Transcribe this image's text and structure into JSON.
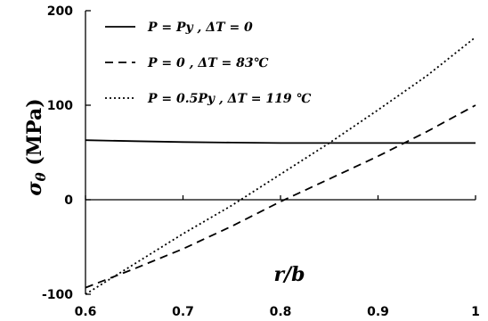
{
  "chart_data": {
    "type": "line",
    "xlabel": "r/b",
    "ylabel": "σθ (MPa)",
    "xlim": [
      0.6,
      1.0
    ],
    "ylim": [
      -100,
      200
    ],
    "xticks": [
      "0.6",
      "0.7",
      "0.8",
      "0.9",
      "1"
    ],
    "yticks": [
      "-100",
      "0",
      "100",
      "200"
    ],
    "grid": false,
    "legend_position": "top-left",
    "series": [
      {
        "name": "P = Py , ΔT = 0",
        "style": "solid",
        "x": [
          0.6,
          0.65,
          0.7,
          0.75,
          0.8,
          0.85,
          0.9,
          0.95,
          1.0
        ],
        "y": [
          63,
          62,
          61,
          60.5,
          60,
          60,
          60,
          60,
          60
        ]
      },
      {
        "name": "P = 0 , ΔT = 83℃",
        "style": "dashed",
        "x": [
          0.6,
          0.65,
          0.7,
          0.75,
          0.8,
          0.85,
          0.9,
          0.95,
          1.0
        ],
        "y": [
          -93,
          -73,
          -52,
          -28,
          -2,
          22,
          46,
          72,
          100
        ]
      },
      {
        "name": "P = 0.5Py , ΔT = 119 ℃",
        "style": "dotted",
        "x": [
          0.6,
          0.65,
          0.7,
          0.75,
          0.8,
          0.85,
          0.9,
          0.95,
          1.0
        ],
        "y": [
          -100,
          -68,
          -36,
          -6,
          27,
          60,
          95,
          131,
          172
        ]
      }
    ]
  }
}
